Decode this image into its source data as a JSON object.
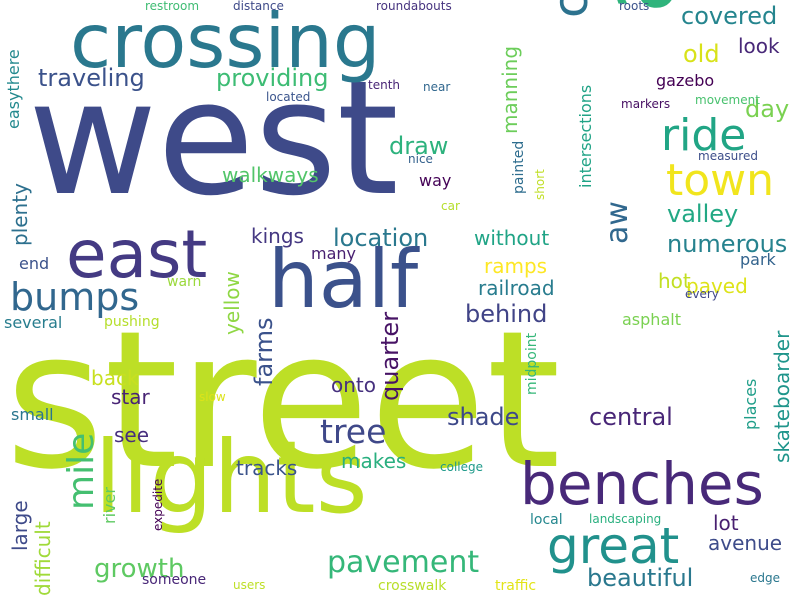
{
  "words": [
    {
      "text": "street",
      "color": "#bddf26"
    },
    {
      "text": "west",
      "color": "#3e4a89"
    },
    {
      "text": "lights",
      "color": "#bddf26"
    },
    {
      "text": "along",
      "color": "#2fb47c"
    },
    {
      "text": "crossing",
      "color": "#2a788e"
    },
    {
      "text": "half",
      "color": "#3b518b"
    },
    {
      "text": "benches",
      "color": "#482979"
    },
    {
      "text": "east",
      "color": "#443a83"
    },
    {
      "text": "great",
      "color": "#21918c"
    },
    {
      "text": "crosses",
      "color": "#2c728e"
    },
    {
      "text": "town",
      "color": "#f1e51d"
    },
    {
      "text": "ride",
      "color": "#21a585"
    },
    {
      "text": "bumps",
      "color": "#31678e"
    },
    {
      "text": "mile",
      "color": "#44bf70"
    },
    {
      "text": "tree",
      "color": "#3f4889"
    },
    {
      "text": "pavement",
      "color": "#35b779"
    },
    {
      "text": "aw",
      "color": "#31688e"
    },
    {
      "text": "growth",
      "color": "#5ec962"
    },
    {
      "text": "providing",
      "color": "#3dbc74"
    },
    {
      "text": "traveling",
      "color": "#3b528b"
    },
    {
      "text": "location",
      "color": "#2a788e"
    },
    {
      "text": "beautiful",
      "color": "#2a788e"
    },
    {
      "text": "valley",
      "color": "#22a884"
    },
    {
      "text": "numerous",
      "color": "#26828e"
    },
    {
      "text": "covered",
      "color": "#25858e"
    },
    {
      "text": "central",
      "color": "#482677"
    },
    {
      "text": "farms",
      "color": "#3b528b"
    },
    {
      "text": "shade",
      "color": "#3e4989"
    },
    {
      "text": "behind",
      "color": "#414487"
    },
    {
      "text": "draw",
      "color": "#2db27d"
    },
    {
      "text": "quarter",
      "color": "#471365"
    },
    {
      "text": "old",
      "color": "#d8e219"
    },
    {
      "text": "day",
      "color": "#7ad151"
    },
    {
      "text": "railroad",
      "color": "#287c8e"
    },
    {
      "text": "large",
      "color": "#3e4a89"
    },
    {
      "text": "walkways",
      "color": "#52c569"
    },
    {
      "text": "yellow",
      "color": "#8fd744"
    },
    {
      "text": "back",
      "color": "#c8e020"
    },
    {
      "text": "skateboarder",
      "color": "#1f958b"
    },
    {
      "text": "ramps",
      "color": "#fde725"
    },
    {
      "text": "hot",
      "color": "#c2df23"
    },
    {
      "text": "paved",
      "color": "#dde318"
    },
    {
      "text": "plenty",
      "color": "#2d708e"
    },
    {
      "text": "avenue",
      "color": "#3e4c8a"
    },
    {
      "text": "lot",
      "color": "#481f70"
    },
    {
      "text": "see",
      "color": "#472f7d"
    },
    {
      "text": "star",
      "color": "#482475"
    },
    {
      "text": "makes",
      "color": "#29af7f"
    },
    {
      "text": "without",
      "color": "#20a486"
    },
    {
      "text": "manning",
      "color": "#6ccd5a"
    },
    {
      "text": "kings",
      "color": "#453882"
    },
    {
      "text": "look",
      "color": "#482878"
    },
    {
      "text": "tracks",
      "color": "#3a538b"
    },
    {
      "text": "onto",
      "color": "#46307e"
    },
    {
      "text": "difficult",
      "color": "#a0da39"
    },
    {
      "text": "gazebo",
      "color": "#440154"
    },
    {
      "text": "easythere",
      "color": "#23898e"
    },
    {
      "text": "park",
      "color": "#33638d"
    },
    {
      "text": "asphalt",
      "color": "#7ad151"
    },
    {
      "text": "intersections",
      "color": "#20a386"
    },
    {
      "text": "river",
      "color": "#5ec962"
    },
    {
      "text": "places",
      "color": "#1f9e89"
    },
    {
      "text": "several",
      "color": "#287d8e"
    },
    {
      "text": "way",
      "color": "#440256"
    },
    {
      "text": "small",
      "color": "#2a768e"
    },
    {
      "text": "many",
      "color": "#482071"
    },
    {
      "text": "end",
      "color": "#3b528b"
    },
    {
      "text": "pushing",
      "color": "#b5de2b"
    },
    {
      "text": "warn",
      "color": "#9bd93c"
    },
    {
      "text": "midpoint",
      "color": "#35b779"
    },
    {
      "text": "painted",
      "color": "#2e6d8e"
    },
    {
      "text": "someone",
      "color": "#482677"
    },
    {
      "text": "crosswalk",
      "color": "#b8de29"
    },
    {
      "text": "traffic",
      "color": "#e2e418"
    },
    {
      "text": "local",
      "color": "#24878e"
    },
    {
      "text": "landscaping",
      "color": "#2ab07f"
    },
    {
      "text": "every",
      "color": "#3f4788"
    },
    {
      "text": "expedite",
      "color": "#440154"
    },
    {
      "text": "college",
      "color": "#1f9a8a"
    },
    {
      "text": "car",
      "color": "#b5de2b"
    },
    {
      "text": "short",
      "color": "#c0df25"
    },
    {
      "text": "users",
      "color": "#bddf26"
    },
    {
      "text": "edge",
      "color": "#2a778e"
    },
    {
      "text": "measured",
      "color": "#3d4e8a"
    },
    {
      "text": "movement",
      "color": "#48c16e"
    },
    {
      "text": "markers",
      "color": "#471063"
    },
    {
      "text": "nice",
      "color": "#34618d"
    },
    {
      "text": "slow",
      "color": "#dce319"
    },
    {
      "text": "restroom",
      "color": "#3fbc73"
    },
    {
      "text": "distance",
      "color": "#3e4a89"
    },
    {
      "text": "roundabouts",
      "color": "#46337f"
    },
    {
      "text": "roots",
      "color": "#3b528b"
    },
    {
      "text": "tenth",
      "color": "#482576"
    },
    {
      "text": "near",
      "color": "#31678e"
    },
    {
      "text": "located",
      "color": "#3a548c"
    }
  ]
}
